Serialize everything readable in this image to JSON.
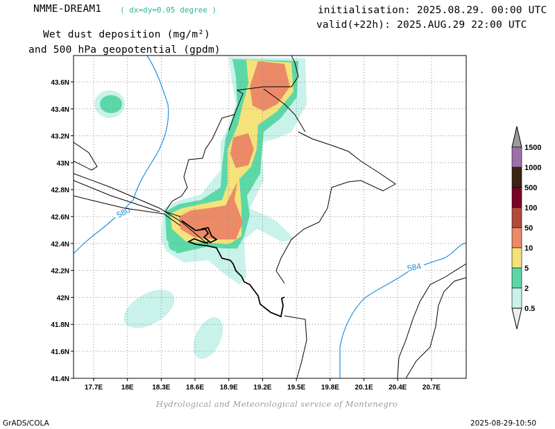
{
  "header": {
    "model": "NMME-DREAM1",
    "resolution": "( dx=dy=0.05 degree )",
    "title_line1": "Wet dust deposition (mg/m²)",
    "title_line2": "and 500 hPa geopotential (gpdm)",
    "init": "initialisation: 2025.08.29. 00:00 UTC",
    "valid": "valid(+22h): 2025.AUG.29 22:00 UTC"
  },
  "colors": {
    "accent_resolution": "#1fb89a",
    "contour_geopotential": "#1e90e0"
  },
  "map": {
    "lat_ticks": [
      "43.6N",
      "43.4N",
      "43.2N",
      "43N",
      "42.8N",
      "42.6N",
      "42.4N",
      "42.2N",
      "42N",
      "41.8N",
      "41.6N",
      "41.4N"
    ],
    "lon_ticks": [
      "17.7E",
      "18E",
      "18.3E",
      "18.6E",
      "18.9E",
      "19.2E",
      "19.5E",
      "19.8E",
      "20.1E",
      "20.4E",
      "20.7E"
    ],
    "grid": "dotted",
    "contour_labels": [
      "580",
      "584"
    ]
  },
  "colorbar": {
    "levels": [
      "1500",
      "1000",
      "500",
      "100",
      "50",
      "10",
      "5",
      "2",
      "0.5"
    ],
    "colors": [
      "#9b9b9b",
      "#9e6fa8",
      "#3c2414",
      "#7a0026",
      "#b24a3c",
      "#ec8a68",
      "#f5e27a",
      "#5cd8a8",
      "#c8f2ea",
      "#eeeeee"
    ]
  },
  "footer": {
    "credit": "Hydrological and Meteorological service of Montenegro",
    "left": "GrADS/COLA",
    "right": "2025-08-29-10:50"
  }
}
